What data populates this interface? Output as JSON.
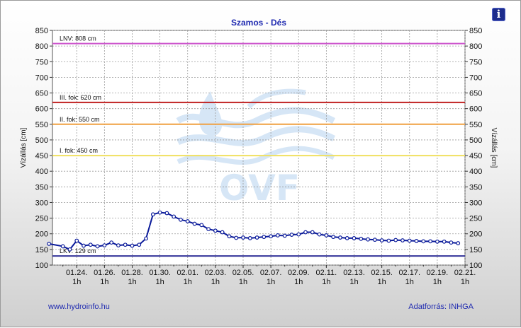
{
  "chart_data": {
    "type": "line",
    "title": "Szamos - Dés",
    "ylabel": "Vízállás [cm]",
    "ylim": [
      100,
      850
    ],
    "yticks": [
      100,
      150,
      200,
      250,
      300,
      350,
      400,
      450,
      500,
      550,
      600,
      650,
      700,
      750,
      800,
      850
    ],
    "x_date_labels": [
      "01.24.",
      "01.26.",
      "01.28.",
      "01.30.",
      "02.01.",
      "02.03.",
      "02.05.",
      "02.07.",
      "02.09.",
      "02.11.",
      "02.13.",
      "02.15.",
      "02.17.",
      "02.19.",
      "02.21."
    ],
    "x_hour_label": "1h",
    "grid": true,
    "reference_lines": [
      {
        "label": "LNV: 808 cm",
        "value": 808,
        "color": "#cc55cc"
      },
      {
        "label": "III. fok: 620 cm",
        "value": 620,
        "color": "#c02020"
      },
      {
        "label": "II. fok: 550 cm",
        "value": 550,
        "color": "#f0a040"
      },
      {
        "label": "I. fok: 450 cm",
        "value": 450,
        "color": "#f0e060"
      },
      {
        "label": "LKV: 129 cm",
        "value": 129,
        "color": "#333399"
      }
    ],
    "series": [
      {
        "color": "#0a1a9a",
        "x": [
          "01.22.",
          "01.23.",
          "01.23.",
          "01.24.",
          "01.24.",
          "01.25.",
          "01.25.",
          "01.26.",
          "01.26.",
          "01.27.",
          "01.27.",
          "01.28.",
          "01.28.",
          "01.29.",
          "01.29.",
          "01.30.",
          "01.30.",
          "01.31.",
          "01.31.",
          "02.01.",
          "02.01.",
          "02.02.",
          "02.02.",
          "02.03.",
          "02.03.",
          "02.04.",
          "02.04.",
          "02.05.",
          "02.05.",
          "02.06.",
          "02.06.",
          "02.07.",
          "02.07.",
          "02.08.",
          "02.08.",
          "02.09.",
          "02.09.",
          "02.10.",
          "02.10.",
          "02.11.",
          "02.11.",
          "02.12.",
          "02.12.",
          "02.13.",
          "02.13.",
          "02.14.",
          "02.14.",
          "02.15.",
          "02.15.",
          "02.16.",
          "02.16.",
          "02.17.",
          "02.17.",
          "02.18.",
          "02.18.",
          "02.19.",
          "02.19.",
          "02.20.",
          "02.20."
        ],
        "values": [
          168,
          160,
          150,
          178,
          162,
          165,
          160,
          163,
          172,
          163,
          165,
          162,
          165,
          185,
          262,
          268,
          266,
          255,
          245,
          240,
          232,
          228,
          215,
          210,
          205,
          192,
          187,
          188,
          186,
          188,
          190,
          192,
          195,
          194,
          197,
          198,
          205,
          205,
          198,
          195,
          190,
          188,
          186,
          186,
          184,
          182,
          181,
          179,
          178,
          180,
          179,
          178,
          177,
          176,
          176,
          175,
          175,
          172,
          170
        ]
      }
    ]
  },
  "footer": {
    "website": "www.hydroinfo.hu",
    "source": "Adatforrás: INHGA"
  },
  "watermark": "OVF",
  "info_icon": "info-icon"
}
